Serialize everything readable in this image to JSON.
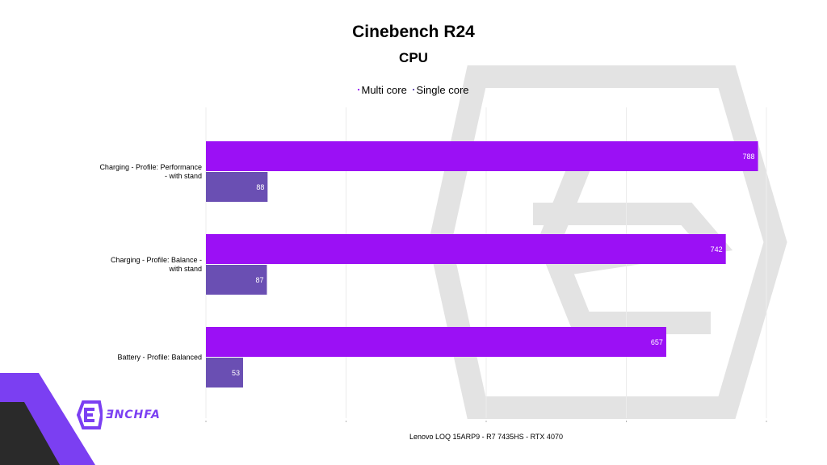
{
  "chart_data": {
    "type": "bar",
    "orientation": "horizontal",
    "title": "Cinebench R24",
    "subtitle": "CPU",
    "categories": [
      "Charging - Profile: Performance - with stand",
      "Charging - Profile: Balance - with stand",
      "Battery - Profile: Balanced"
    ],
    "series": [
      {
        "name": "Multi core",
        "color": "#9b10f5",
        "values": [
          788,
          742,
          657
        ]
      },
      {
        "name": "Single core",
        "color": "#6a4fb3",
        "values": [
          88,
          87,
          53
        ]
      }
    ],
    "xlim": [
      0,
      800
    ],
    "xticks": [
      0,
      200,
      400,
      600,
      800
    ],
    "xlabel": "Lenovo LOQ 15ARP9  - R7 7435HS - RTX 4070",
    "legend_position": "top",
    "grid": "vertical"
  },
  "brand": {
    "name": "ƎNCHFA",
    "colors": {
      "primary": "#7b3ff2",
      "dark": "#2a2a2a"
    }
  }
}
